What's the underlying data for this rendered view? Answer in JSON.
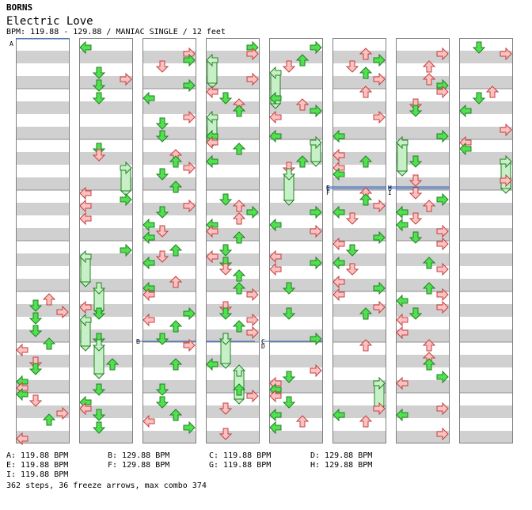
{
  "header": {
    "artist": "BORNS",
    "title": "Electric Love",
    "meta": "BPM: 119.88 - 129.88 / MANIAC SINGLE / 12 feet"
  },
  "bpm_changes": [
    {
      "label": "A: 119.88 BPM"
    },
    {
      "label": "B: 129.88 BPM"
    },
    {
      "label": "C: 119.88 BPM"
    },
    {
      "label": "D: 129.88 BPM"
    },
    {
      "label": "E: 119.88 BPM"
    },
    {
      "label": "F: 129.88 BPM"
    },
    {
      "label": "G: 119.88 BPM"
    },
    {
      "label": "H: 129.88 BPM"
    },
    {
      "label": "I: 119.88 BPM"
    }
  ],
  "markers": [
    "A",
    "B",
    "C",
    "D",
    "E",
    "F",
    "G",
    "H",
    "I"
  ],
  "summary": "362 steps, 36 freeze arrows, max combo 374",
  "colors": {
    "stripe_gray": "#d0d0d0",
    "frame": "#808080",
    "bpm_line": "#3060c0",
    "red_fill": "#ffc0c0",
    "red_stroke": "#c04040",
    "green_fill": "#50e050",
    "green_stroke": "#208020",
    "freeze_fill": "#c8f0c8"
  },
  "icons": {
    "left": "left-arrow-icon",
    "down": "down-arrow-icon",
    "up": "up-arrow-icon",
    "right": "right-arrow-icon",
    "freeze": "freeze-arrow-icon"
  }
}
